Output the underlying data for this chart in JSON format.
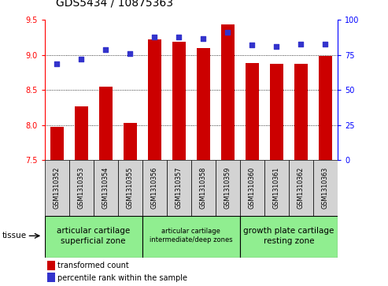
{
  "title": "GDS5434 / 10875363",
  "samples": [
    "GSM1310352",
    "GSM1310353",
    "GSM1310354",
    "GSM1310355",
    "GSM1310356",
    "GSM1310357",
    "GSM1310358",
    "GSM1310359",
    "GSM1310360",
    "GSM1310361",
    "GSM1310362",
    "GSM1310363"
  ],
  "bar_values": [
    7.97,
    8.27,
    8.55,
    8.03,
    9.22,
    9.19,
    9.1,
    9.44,
    8.89,
    8.87,
    8.88,
    8.99
  ],
  "percentile_values": [
    69,
    72,
    79,
    76,
    88,
    88,
    87,
    91,
    82,
    81,
    83,
    83
  ],
  "ylim_left": [
    7.5,
    9.5
  ],
  "ylim_right": [
    0,
    100
  ],
  "yticks_left": [
    7.5,
    8.0,
    8.5,
    9.0,
    9.5
  ],
  "yticks_right": [
    0,
    25,
    50,
    75,
    100
  ],
  "bar_color": "#cc0000",
  "dot_color": "#3333cc",
  "bar_bottom": 7.5,
  "grid_values": [
    8.0,
    8.5,
    9.0
  ],
  "tissue_groups": [
    {
      "label": "articular cartilage\nsuperficial zone",
      "start": 0,
      "end": 4,
      "fontsize": 7.5
    },
    {
      "label": "articular cartilage\nintermediate/deep zones",
      "start": 4,
      "end": 8,
      "fontsize": 6.0
    },
    {
      "label": "growth plate cartilage\nresting zone",
      "start": 8,
      "end": 12,
      "fontsize": 7.5
    }
  ],
  "tissue_color": "#90ee90",
  "tissue_label": "tissue",
  "legend_bar_label": "transformed count",
  "legend_dot_label": "percentile rank within the sample",
  "bg_color_tick": "#d3d3d3",
  "title_fontsize": 10,
  "tick_fontsize": 7,
  "sample_fontsize": 5.8
}
